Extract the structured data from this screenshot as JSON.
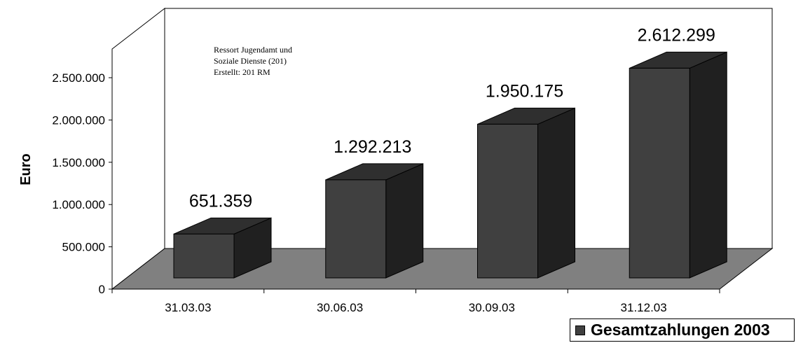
{
  "chart_data": {
    "type": "bar",
    "categories": [
      "31.03.03",
      "30.06.03",
      "30.09.03",
      "31.12.03"
    ],
    "series": [
      {
        "name": "Gesamtzahlungen 2003",
        "values": [
          651359,
          1292213,
          1950175,
          2612299
        ]
      }
    ],
    "data_labels": [
      "651.359",
      "1.292.213",
      "1.950.175",
      "2.612.299"
    ],
    "title": "",
    "xlabel": "",
    "ylabel": "Euro",
    "ylim": [
      0,
      2500000
    ],
    "y_ticks": [
      0,
      500000,
      1000000,
      1500000,
      2000000,
      2500000
    ],
    "y_tick_labels": [
      "0",
      "500.000",
      "1.000.000",
      "1.500.000",
      "2.000.000",
      "2.500.000"
    ],
    "grid": false,
    "legend": "bottom-right",
    "annotation": [
      "Ressort Jugendamt und",
      "Soziale Dienste (201)",
      "Erstellt: 201 RM"
    ],
    "colors": {
      "bar_front": "#404040",
      "bar_top": "#2f2f2f",
      "bar_side": "#202020",
      "floor": "#808080",
      "wall": "#ffffff",
      "line": "#000000"
    }
  }
}
